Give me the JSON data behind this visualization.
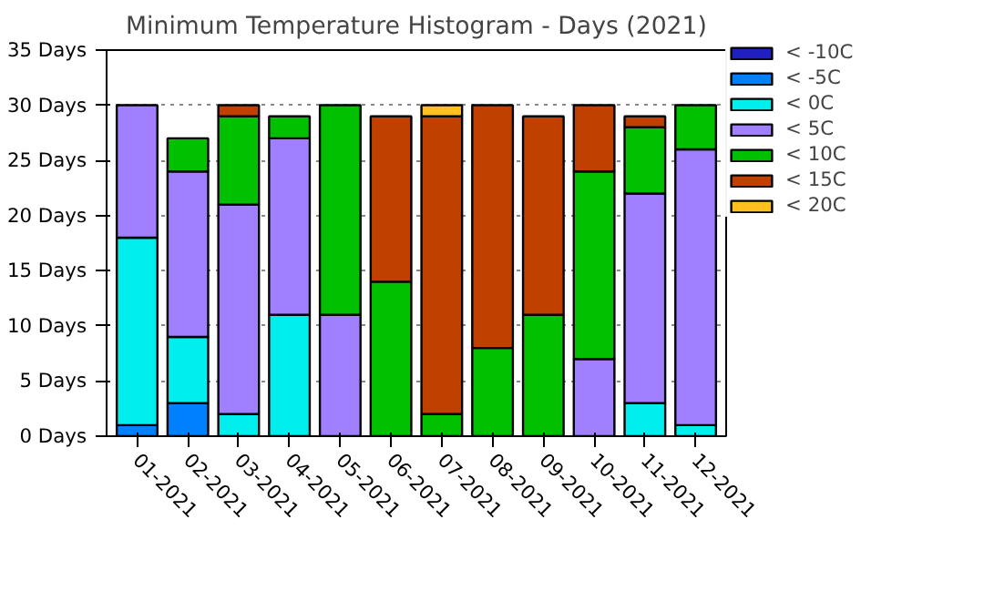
{
  "chart_data": {
    "type": "bar",
    "title": "Minimum Temperature Histogram - Days (2021)",
    "stacked": true,
    "categories": [
      "01-2021",
      "02-2021",
      "03-2021",
      "04-2021",
      "05-2021",
      "06-2021",
      "07-2021",
      "08-2021",
      "09-2021",
      "10-2021",
      "11-2021",
      "12-2021"
    ],
    "series": [
      {
        "name": "< -10C",
        "color": "#2020c0",
        "values": [
          null,
          null,
          null,
          null,
          null,
          null,
          null,
          null,
          null,
          null,
          null,
          null
        ]
      },
      {
        "name": "< -5C",
        "color": "#0080ff",
        "values": [
          1,
          3,
          null,
          null,
          null,
          null,
          null,
          null,
          null,
          null,
          null,
          null
        ]
      },
      {
        "name": "< 0C",
        "color": "#00eeee",
        "values": [
          17,
          6,
          2,
          11,
          null,
          null,
          null,
          null,
          null,
          null,
          3,
          1
        ]
      },
      {
        "name": "< 5C",
        "color": "#a080ff",
        "values": [
          12,
          15,
          19,
          16,
          11,
          null,
          null,
          null,
          null,
          7,
          19,
          25
        ]
      },
      {
        "name": "< 10C",
        "color": "#00c000",
        "values": [
          null,
          3,
          8,
          2,
          19,
          14,
          2,
          8,
          11,
          17,
          6,
          4
        ]
      },
      {
        "name": "< 15C",
        "color": "#c04000",
        "values": [
          null,
          null,
          1,
          null,
          null,
          15,
          27,
          22,
          18,
          6,
          1,
          null
        ]
      },
      {
        "name": "< 20C",
        "color": "#ffc020",
        "values": [
          null,
          null,
          null,
          null,
          null,
          null,
          1,
          null,
          null,
          null,
          null,
          null
        ]
      }
    ],
    "ylim": [
      0,
      35
    ],
    "yticks": [
      {
        "value": 0,
        "label": "0 Days"
      },
      {
        "value": 5,
        "label": "5 Days"
      },
      {
        "value": 10,
        "label": "10 Days"
      },
      {
        "value": 15,
        "label": "15 Days"
      },
      {
        "value": 20,
        "label": "20 Days"
      },
      {
        "value": 25,
        "label": "25 Days"
      },
      {
        "value": 30,
        "label": "30 Days"
      },
      {
        "value": 35,
        "label": "35 Days"
      }
    ],
    "grid": "y",
    "legend": "top right"
  }
}
